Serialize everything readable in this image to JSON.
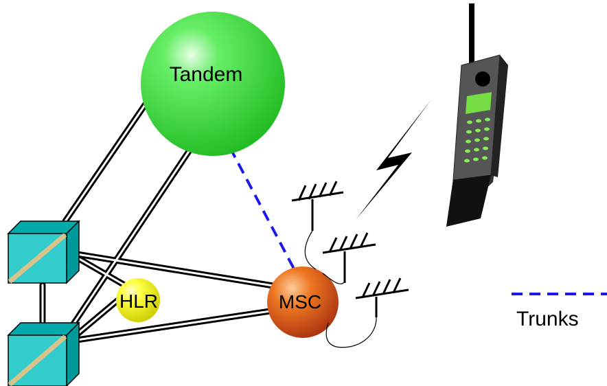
{
  "nodes": [
    {
      "label": "Tandem"
    },
    {
      "label": "HLR"
    },
    {
      "label": "MSC"
    }
  ],
  "legend": {
    "label": "Trunks"
  }
}
